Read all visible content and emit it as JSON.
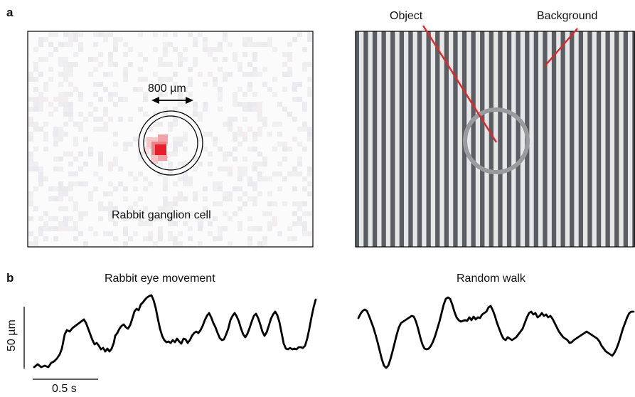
{
  "panel_a": {
    "letter": "a",
    "receptive_field": {
      "caption": "Rabbit ganglion cell",
      "scale_label": "800 µm",
      "hotspot_color": "#e5202a"
    },
    "stimulus": {
      "object_label": "Object",
      "background_label": "Background",
      "pointer_color": "#e0262b",
      "stripe_dark_color": "#5a5d61",
      "stripe_light_color": "#e6e7e9",
      "ring_color": "#9a9b9e"
    }
  },
  "panel_b": {
    "letter": "b",
    "left_title": "Rabbit eye movement",
    "right_title": "Random walk",
    "vertical_scale_label": "50 µm",
    "horizontal_scale_label": "0.5 s",
    "trace_color": "#000000"
  }
}
